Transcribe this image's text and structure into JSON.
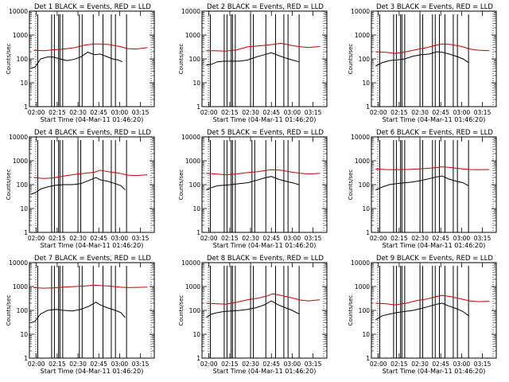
{
  "figure": {
    "xlabel": "Start Time (04-Mar-11 01:46:20)",
    "ylabel": "Counts/sec"
  },
  "chart_data": [
    {
      "type": "line",
      "title": "Det 1 BLACK = Events, RED = LLD",
      "xlabel": "Start Time (04-Mar-11 01:46:20)",
      "ylabel": "Counts/sec",
      "yscale": "log",
      "ylim": [
        1,
        10000
      ],
      "xlim": [
        "01:55",
        "03:25"
      ],
      "x_ticks": [
        "02:00",
        "02:15",
        "02:30",
        "02:45",
        "03:00",
        "03:15"
      ],
      "y_ticks": [
        "1",
        "10",
        "100",
        "1000",
        "10000"
      ],
      "grid": false,
      "legend": "none",
      "series": [
        {
          "color": "#000000",
          "x": [
            "01:56",
            "01:59",
            "02:03",
            "02:08",
            "02:12",
            "02:17",
            "02:22",
            "02:27",
            "02:32",
            "02:37",
            "02:42",
            "02:46",
            "02:50",
            "02:55",
            "02:59",
            "03:02"
          ],
          "y": [
            40,
            45,
            100,
            120,
            120,
            100,
            85,
            95,
            120,
            190,
            150,
            160,
            130,
            100,
            90,
            75
          ]
        },
        {
          "color": "#cc0000",
          "x": [
            "01:58",
            "02:05",
            "02:12",
            "02:20",
            "02:28",
            "02:35",
            "02:42",
            "02:46",
            "02:52",
            "03:00",
            "03:06",
            "03:12",
            "03:20"
          ],
          "y": [
            230,
            220,
            240,
            260,
            300,
            380,
            420,
            420,
            400,
            330,
            270,
            260,
            300
          ]
        }
      ]
    },
    {
      "type": "line",
      "title": "Det 2 BLACK = Events, RED = LLD",
      "xlabel": "Start Time (04-Mar-11 01:46:20)",
      "ylabel": "Counts/sec",
      "yscale": "log",
      "ylim": [
        1,
        10000
      ],
      "xlim": [
        "01:55",
        "03:25"
      ],
      "x_ticks": [
        "02:00",
        "02:15",
        "02:30",
        "02:45",
        "03:00",
        "03:15"
      ],
      "y_ticks": [
        "1",
        "10",
        "100",
        "1000",
        "10000"
      ],
      "grid": false,
      "legend": "none",
      "series": [
        {
          "color": "#000000",
          "x": [
            "01:58",
            "02:02",
            "02:06",
            "02:11",
            "02:16",
            "02:22",
            "02:28",
            "02:34",
            "02:40",
            "02:45",
            "02:50",
            "02:55",
            "03:00",
            "03:05"
          ],
          "y": [
            55,
            60,
            75,
            80,
            80,
            80,
            90,
            120,
            150,
            180,
            140,
            110,
            90,
            75
          ]
        },
        {
          "color": "#cc0000",
          "x": [
            "01:58",
            "02:05",
            "02:12",
            "02:20",
            "02:28",
            "02:35",
            "02:42",
            "02:46",
            "02:52",
            "03:00",
            "03:06",
            "03:12",
            "03:20"
          ],
          "y": [
            220,
            220,
            210,
            240,
            320,
            350,
            380,
            400,
            450,
            360,
            320,
            300,
            330
          ]
        }
      ]
    },
    {
      "type": "line",
      "title": "Det 3 BLACK = Events, RED = LLD",
      "xlabel": "Start Time (04-Mar-11 01:46:20)",
      "ylabel": "Counts/sec",
      "yscale": "log",
      "ylim": [
        1,
        10000
      ],
      "xlim": [
        "01:55",
        "03:25"
      ],
      "x_ticks": [
        "02:00",
        "02:15",
        "02:30",
        "02:45",
        "03:00",
        "03:15"
      ],
      "y_ticks": [
        "1",
        "10",
        "100",
        "1000",
        "10000"
      ],
      "grid": false,
      "legend": "none",
      "series": [
        {
          "color": "#000000",
          "x": [
            "01:58",
            "02:03",
            "02:08",
            "02:13",
            "02:19",
            "02:25",
            "02:31",
            "02:37",
            "02:42",
            "02:46",
            "02:51",
            "02:56",
            "03:01",
            "03:05"
          ],
          "y": [
            50,
            70,
            85,
            90,
            100,
            130,
            150,
            160,
            200,
            190,
            160,
            130,
            100,
            70
          ]
        },
        {
          "color": "#cc0000",
          "x": [
            "01:58",
            "02:05",
            "02:12",
            "02:20",
            "02:28",
            "02:35",
            "02:42",
            "02:46",
            "02:52",
            "03:00",
            "03:06",
            "03:12",
            "03:20"
          ],
          "y": [
            200,
            190,
            170,
            200,
            250,
            300,
            380,
            420,
            400,
            330,
            260,
            230,
            220
          ]
        }
      ]
    },
    {
      "type": "line",
      "title": "Det 4 BLACK = Events, RED = LLD",
      "xlabel": "Start Time (04-Mar-11 01:46:20)",
      "ylabel": "Counts/sec",
      "yscale": "log",
      "ylim": [
        1,
        10000
      ],
      "xlim": [
        "01:55",
        "03:25"
      ],
      "x_ticks": [
        "02:00",
        "02:15",
        "02:30",
        "02:45",
        "03:00",
        "03:15"
      ],
      "y_ticks": [
        "1",
        "10",
        "100",
        "1000",
        "10000"
      ],
      "grid": false,
      "legend": "none",
      "series": [
        {
          "color": "#000000",
          "x": [
            "01:56",
            "01:59",
            "02:03",
            "02:08",
            "02:14",
            "02:20",
            "02:26",
            "02:32",
            "02:38",
            "02:43",
            "02:46",
            "02:51",
            "02:57",
            "03:01",
            "03:04"
          ],
          "y": [
            40,
            45,
            65,
            80,
            95,
            100,
            100,
            110,
            150,
            200,
            160,
            140,
            110,
            90,
            60
          ]
        },
        {
          "color": "#cc0000",
          "x": [
            "01:58",
            "02:05",
            "02:12",
            "02:20",
            "02:28",
            "02:35",
            "02:42",
            "02:46",
            "02:52",
            "03:00",
            "03:06",
            "03:12",
            "03:20"
          ],
          "y": [
            200,
            180,
            190,
            230,
            270,
            300,
            330,
            400,
            350,
            300,
            250,
            240,
            260
          ]
        }
      ]
    },
    {
      "type": "line",
      "title": "Det 5 BLACK = Events, RED = LLD",
      "xlabel": "Start Time (04-Mar-11 01:46:20)",
      "ylabel": "Counts/sec",
      "yscale": "log",
      "ylim": [
        1,
        10000
      ],
      "xlim": [
        "01:55",
        "03:25"
      ],
      "x_ticks": [
        "02:00",
        "02:15",
        "02:30",
        "02:45",
        "03:00",
        "03:15"
      ],
      "y_ticks": [
        "1",
        "10",
        "100",
        "1000",
        "10000"
      ],
      "grid": false,
      "legend": "none",
      "series": [
        {
          "color": "#000000",
          "x": [
            "01:58",
            "02:02",
            "02:06",
            "02:11",
            "02:16",
            "02:22",
            "02:28",
            "02:34",
            "02:40",
            "02:45",
            "02:50",
            "02:55",
            "03:00",
            "03:05"
          ],
          "y": [
            60,
            75,
            90,
            95,
            100,
            110,
            120,
            150,
            190,
            220,
            170,
            140,
            120,
            100
          ]
        },
        {
          "color": "#cc0000",
          "x": [
            "01:58",
            "02:05",
            "02:12",
            "02:20",
            "02:28",
            "02:35",
            "02:42",
            "02:46",
            "02:52",
            "03:00",
            "03:06",
            "03:12",
            "03:20"
          ],
          "y": [
            300,
            280,
            260,
            280,
            320,
            350,
            400,
            420,
            400,
            330,
            300,
            280,
            300
          ]
        }
      ]
    },
    {
      "type": "line",
      "title": "Det 6 BLACK = Events, RED = LLD",
      "xlabel": "Start Time (04-Mar-11 01:46:20)",
      "ylabel": "Counts/sec",
      "yscale": "log",
      "ylim": [
        1,
        10000
      ],
      "xlim": [
        "01:55",
        "03:25"
      ],
      "x_ticks": [
        "02:00",
        "02:15",
        "02:30",
        "02:45",
        "03:00",
        "03:15"
      ],
      "y_ticks": [
        "1",
        "10",
        "100",
        "1000",
        "10000"
      ],
      "grid": false,
      "legend": "none",
      "series": [
        {
          "color": "#000000",
          "x": [
            "01:58",
            "02:03",
            "02:08",
            "02:13",
            "02:19",
            "02:25",
            "02:31",
            "02:37",
            "02:42",
            "02:46",
            "02:51",
            "02:56",
            "03:01",
            "03:05"
          ],
          "y": [
            60,
            80,
            100,
            110,
            120,
            130,
            150,
            180,
            210,
            230,
            170,
            140,
            120,
            90
          ]
        },
        {
          "color": "#cc0000",
          "x": [
            "01:58",
            "02:05",
            "02:12",
            "02:20",
            "02:28",
            "02:35",
            "02:42",
            "02:46",
            "02:52",
            "03:00",
            "03:06",
            "03:12",
            "03:20"
          ],
          "y": [
            450,
            430,
            420,
            430,
            450,
            480,
            520,
            560,
            520,
            460,
            430,
            420,
            430
          ]
        }
      ]
    },
    {
      "type": "line",
      "title": "Det 7 BLACK = Events, RED = LLD",
      "xlabel": "Start Time (04-Mar-11 01:46:20)",
      "ylabel": "Counts/sec",
      "yscale": "log",
      "ylim": [
        1,
        10000
      ],
      "xlim": [
        "01:55",
        "03:25"
      ],
      "x_ticks": [
        "02:00",
        "02:15",
        "02:30",
        "02:45",
        "03:00",
        "03:15"
      ],
      "y_ticks": [
        "1",
        "10",
        "100",
        "1000",
        "10000"
      ],
      "grid": false,
      "legend": "none",
      "series": [
        {
          "color": "#000000",
          "x": [
            "01:56",
            "01:59",
            "02:03",
            "02:08",
            "02:14",
            "02:20",
            "02:26",
            "02:32",
            "02:38",
            "02:43",
            "02:46",
            "02:51",
            "02:57",
            "03:01",
            "03:04"
          ],
          "y": [
            30,
            35,
            70,
            100,
            110,
            100,
            95,
            110,
            150,
            220,
            170,
            130,
            100,
            80,
            50
          ]
        },
        {
          "color": "#cc0000",
          "x": [
            "01:58",
            "02:05",
            "02:12",
            "02:20",
            "02:28",
            "02:35",
            "02:42",
            "02:46",
            "02:52",
            "03:00",
            "03:06",
            "03:12",
            "03:20"
          ],
          "y": [
            900,
            850,
            880,
            950,
            1000,
            1050,
            1150,
            1100,
            1050,
            950,
            900,
            920,
            950
          ]
        }
      ]
    },
    {
      "type": "line",
      "title": "Det 8 BLACK = Events, RED = LLD",
      "xlabel": "Start Time (04-Mar-11 01:46:20)",
      "ylabel": "Counts/sec",
      "yscale": "log",
      "ylim": [
        1,
        10000
      ],
      "xlim": [
        "01:55",
        "03:25"
      ],
      "x_ticks": [
        "02:00",
        "02:15",
        "02:30",
        "02:45",
        "03:00",
        "03:15"
      ],
      "y_ticks": [
        "1",
        "10",
        "100",
        "1000",
        "10000"
      ],
      "grid": false,
      "legend": "none",
      "series": [
        {
          "color": "#000000",
          "x": [
            "01:58",
            "02:02",
            "02:06",
            "02:11",
            "02:16",
            "02:22",
            "02:28",
            "02:34",
            "02:40",
            "02:45",
            "02:50",
            "02:55",
            "03:00",
            "03:05"
          ],
          "y": [
            50,
            70,
            80,
            90,
            95,
            100,
            110,
            130,
            170,
            250,
            170,
            130,
            100,
            70
          ]
        },
        {
          "color": "#cc0000",
          "x": [
            "01:58",
            "02:05",
            "02:12",
            "02:20",
            "02:28",
            "02:35",
            "02:42",
            "02:46",
            "02:52",
            "03:00",
            "03:06",
            "03:12",
            "03:20"
          ],
          "y": [
            200,
            190,
            180,
            220,
            280,
            320,
            400,
            500,
            420,
            330,
            270,
            250,
            280
          ]
        }
      ]
    },
    {
      "type": "line",
      "title": "Det 9 BLACK = Events, RED = LLD",
      "xlabel": "Start Time (04-Mar-11 01:46:20)",
      "ylabel": "Counts/sec",
      "yscale": "log",
      "ylim": [
        1,
        10000
      ],
      "xlim": [
        "01:55",
        "03:25"
      ],
      "x_ticks": [
        "02:00",
        "02:15",
        "02:30",
        "02:45",
        "03:00",
        "03:15"
      ],
      "y_ticks": [
        "1",
        "10",
        "100",
        "1000",
        "10000"
      ],
      "grid": false,
      "legend": "none",
      "series": [
        {
          "color": "#000000",
          "x": [
            "01:58",
            "02:03",
            "02:08",
            "02:13",
            "02:19",
            "02:25",
            "02:31",
            "02:37",
            "02:42",
            "02:46",
            "02:51",
            "02:56",
            "03:01",
            "03:05"
          ],
          "y": [
            40,
            60,
            70,
            80,
            90,
            100,
            120,
            150,
            180,
            200,
            150,
            120,
            90,
            60
          ]
        },
        {
          "color": "#cc0000",
          "x": [
            "01:58",
            "02:05",
            "02:12",
            "02:20",
            "02:28",
            "02:35",
            "02:42",
            "02:46",
            "02:52",
            "03:00",
            "03:06",
            "03:12",
            "03:20"
          ],
          "y": [
            200,
            190,
            170,
            200,
            260,
            300,
            380,
            420,
            380,
            300,
            250,
            230,
            240
          ]
        }
      ]
    }
  ]
}
